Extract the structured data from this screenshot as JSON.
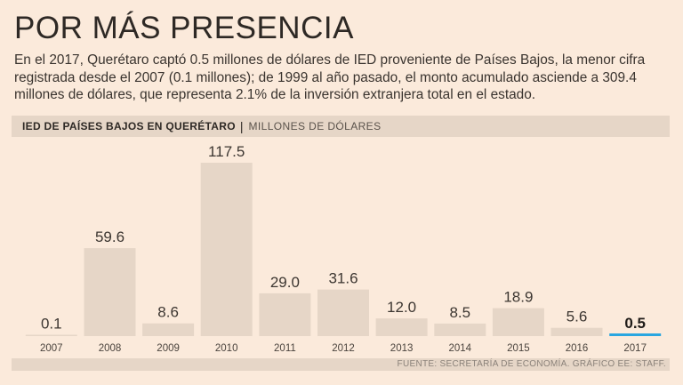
{
  "headline": "POR MÁS PRESENCIA",
  "intro": "En el 2017, Querétaro captó 0.5 millones de dólares de IED proveniente de Países Bajos, la menor cifra registrada desde el 2007 (0.1 millones); de 1999 al año pasado, el monto acumulado asciende a 309.4 millones de dólares, que representa 2.1% de la inversión extranjera total en el estado.",
  "chart_header": {
    "title": "IED DE PAÍSES BAJOS EN QUERÉTARO",
    "separator": "|",
    "unit": "MILLONES DE DÓLARES"
  },
  "source": "FUENTE: SECRETARÍA DE ECONOMÍA. GRÁFICO EE: STAFF.",
  "colors": {
    "background": "#fbeadb",
    "bar": "#e6d6c7",
    "highlight": "#2aa6e0",
    "text": "#3c3631"
  },
  "chart_data": {
    "type": "bar",
    "title": "IED DE PAÍSES BAJOS EN QUERÉTARO",
    "ylabel": "MILLONES DE DÓLARES",
    "xlabel": "",
    "categories": [
      "2007",
      "2008",
      "2009",
      "2010",
      "2011",
      "2012",
      "2013",
      "2014",
      "2015",
      "2016",
      "2017"
    ],
    "values": [
      0.1,
      59.6,
      8.6,
      117.5,
      29.0,
      31.6,
      12.0,
      8.5,
      18.9,
      5.6,
      0.5
    ],
    "value_labels": [
      "0.1",
      "59.6",
      "8.6",
      "117.5",
      "29.0",
      "31.6",
      "12.0",
      "8.5",
      "18.9",
      "5.6",
      "0.5"
    ],
    "highlight_category": "2017",
    "ylim": [
      0,
      117.5
    ],
    "grid": false
  }
}
